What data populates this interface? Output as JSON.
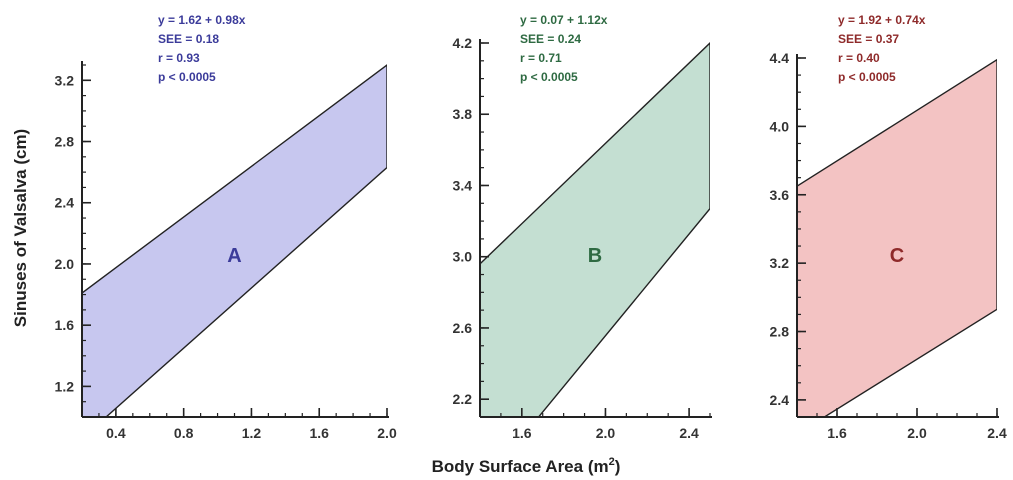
{
  "figure": {
    "xlabel": "Body Surface Area (m",
    "xlabel_sup": "2",
    "xlabel_close": ")",
    "ylabel": "Sinuses of Valsalva (cm)"
  },
  "chart_data": [
    {
      "type": "area",
      "panel": "A",
      "letter": "A",
      "color": "#c7c7ef",
      "text_color": "#3b3b9a",
      "xlim": [
        0.2,
        2.0
      ],
      "ylim": [
        1.0,
        3.3
      ],
      "xticks": [
        0.4,
        0.8,
        1.2,
        1.6,
        2.0
      ],
      "xtick_labels": [
        "0.4",
        "0.8",
        "1.2",
        "1.6",
        "2.0"
      ],
      "yticks": [
        1.2,
        1.6,
        2.0,
        2.4,
        2.8,
        3.2
      ],
      "ytick_labels": [
        "1.2",
        "1.6",
        "2.0",
        "2.4",
        "2.8",
        "3.2"
      ],
      "x_minor": 0.1,
      "y_minor": 0.1,
      "band": {
        "x": [
          0.2,
          2.0
        ],
        "upper": [
          1.81,
          3.3
        ],
        "lower": [
          0.86,
          2.63
        ]
      },
      "annotations": [
        "y = 1.62 + 0.98x",
        "SEE = 0.18",
        "r = 0.93",
        "p < 0.0005"
      ]
    },
    {
      "type": "area",
      "panel": "B",
      "letter": "B",
      "color": "#c4dfd2",
      "text_color": "#2e6a42",
      "xlim": [
        1.4,
        2.5
      ],
      "ylim": [
        2.1,
        4.2
      ],
      "xticks": [
        1.6,
        2.0,
        2.4
      ],
      "xtick_labels": [
        "1.6",
        "2.0",
        "2.4"
      ],
      "yticks": [
        2.2,
        2.6,
        3.0,
        3.4,
        3.8,
        4.2
      ],
      "ytick_labels": [
        "2.2",
        "2.6",
        "3.0",
        "3.4",
        "3.8",
        "4.2"
      ],
      "x_minor": 0.1,
      "y_minor": 0.1,
      "band": {
        "x": [
          1.4,
          2.5
        ],
        "upper": [
          2.96,
          4.2
        ],
        "lower": [
          1.7,
          3.27
        ]
      },
      "annotations": [
        "y = 0.07 + 1.12x",
        "SEE = 0.24",
        "r = 0.71",
        "p < 0.0005"
      ]
    },
    {
      "type": "area",
      "panel": "C",
      "letter": "C",
      "color": "#f3c3c3",
      "text_color": "#8e2a2a",
      "xlim": [
        1.4,
        2.4
      ],
      "ylim": [
        2.3,
        4.4
      ],
      "xticks": [
        1.6,
        2.0,
        2.4
      ],
      "xtick_labels": [
        "1.6",
        "2.0",
        "2.4"
      ],
      "yticks": [
        2.4,
        2.8,
        3.2,
        3.6,
        4.0,
        4.4
      ],
      "ytick_labels": [
        "2.4",
        "2.8",
        "3.2",
        "3.6",
        "4.0",
        "4.4"
      ],
      "x_minor": 0.1,
      "y_minor": 0.1,
      "band": {
        "x": [
          1.4,
          2.4
        ],
        "upper": [
          3.65,
          4.39
        ],
        "lower": [
          2.2,
          2.93
        ]
      },
      "annotations": [
        "y = 1.92 + 0.74x",
        "SEE = 0.37",
        "r = 0.40",
        "p < 0.0005"
      ]
    }
  ]
}
